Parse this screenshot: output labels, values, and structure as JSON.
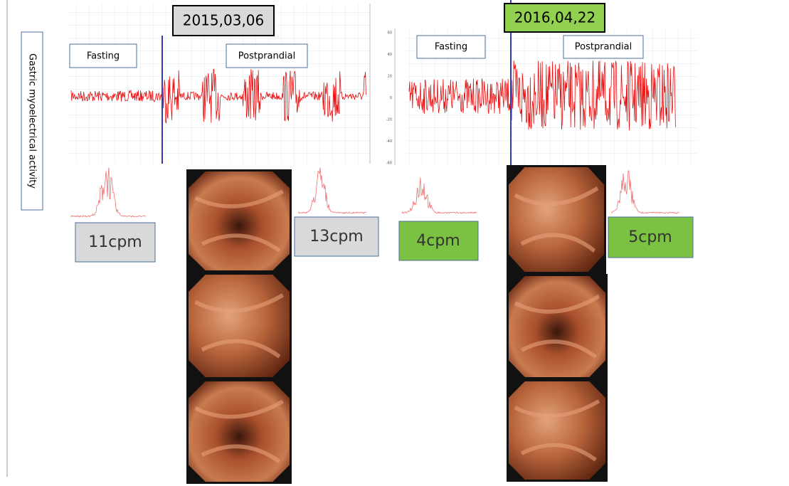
{
  "y_label": "Gastric myoelectrical activity",
  "axis_ticks": [
    "60",
    "40",
    "20",
    "0",
    "-20",
    "-40",
    "-60"
  ],
  "panels": [
    {
      "date": "2015,03,06",
      "fasting": "Fasting",
      "postprandial": "Postprandial",
      "fasting_freq": "11cpm",
      "postprandial_freq": "13cpm"
    },
    {
      "date": "2016,04,22",
      "fasting": "Fasting",
      "postprandial": "Postprandial",
      "fasting_freq": "4cpm",
      "postprandial_freq": "5cpm"
    }
  ]
}
